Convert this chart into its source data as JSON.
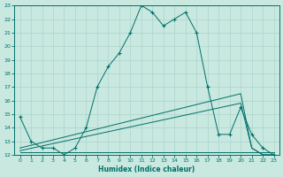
{
  "xlabel": "Humidex (Indice chaleur)",
  "xlim": [
    -0.5,
    23.5
  ],
  "ylim": [
    12,
    23
  ],
  "yticks": [
    12,
    13,
    14,
    15,
    16,
    17,
    18,
    19,
    20,
    21,
    22,
    23
  ],
  "xticks": [
    0,
    1,
    2,
    3,
    4,
    5,
    6,
    7,
    8,
    9,
    10,
    11,
    12,
    13,
    14,
    15,
    16,
    17,
    18,
    19,
    20,
    21,
    22,
    23
  ],
  "bg_color": "#c8e8e0",
  "line_color": "#007068",
  "grid_color": "#b0d8d0",
  "lines": [
    {
      "x": [
        0,
        1,
        2,
        3,
        4,
        5,
        6,
        7,
        8,
        9,
        10,
        11,
        12,
        13,
        14,
        15,
        16,
        17,
        18,
        19,
        20,
        21,
        22,
        23
      ],
      "y": [
        14.8,
        13.0,
        12.5,
        12.5,
        12.0,
        12.5,
        14.0,
        17.0,
        18.5,
        19.5,
        21.0,
        23.0,
        22.5,
        21.5,
        22.0,
        22.5,
        21.0,
        17.0,
        13.5,
        13.5,
        15.5,
        13.5,
        12.5,
        12.0
      ],
      "marker": "+"
    },
    {
      "x": [
        0,
        20,
        21,
        22,
        23
      ],
      "y": [
        12.5,
        16.5,
        12.5,
        12.0,
        12.0
      ],
      "marker": null
    },
    {
      "x": [
        0,
        20,
        21,
        22,
        23
      ],
      "y": [
        12.3,
        15.8,
        12.5,
        12.0,
        12.0
      ],
      "marker": null
    },
    {
      "x": [
        0,
        10,
        20,
        21,
        22,
        23
      ],
      "y": [
        12.2,
        12.2,
        12.2,
        12.2,
        12.2,
        12.2
      ],
      "marker": null
    }
  ]
}
